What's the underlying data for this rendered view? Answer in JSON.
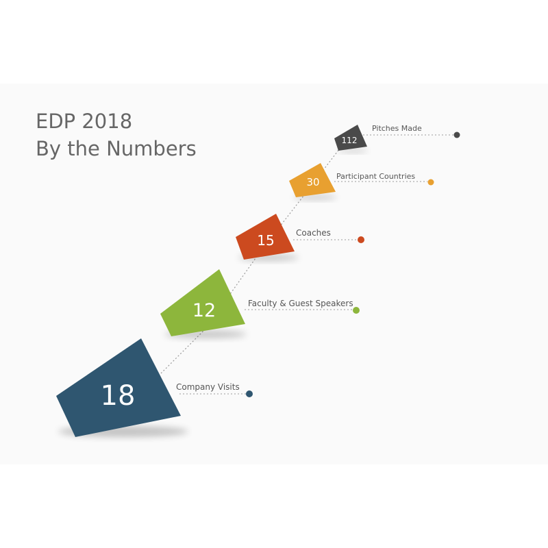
{
  "title": {
    "line1": "EDP 2018",
    "line2": "By the Numbers"
  },
  "stats": [
    {
      "value": "18",
      "label": "Company Visits",
      "color": "#2f5670"
    },
    {
      "value": "12",
      "label": "Faculty & Guest Speakers",
      "color": "#8db63c"
    },
    {
      "value": "15",
      "label": "Coaches",
      "color": "#cc4a1f"
    },
    {
      "value": "30",
      "label": "Participant Countries",
      "color": "#e8a030"
    },
    {
      "value": "112",
      "label": "Pitches Made",
      "color": "#4a4a4a"
    }
  ]
}
